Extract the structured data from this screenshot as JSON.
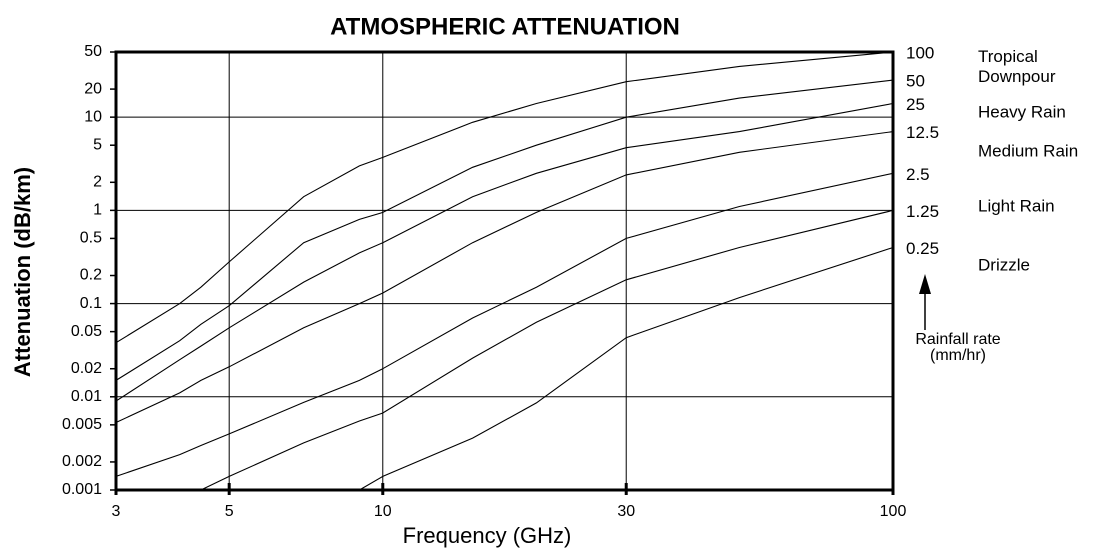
{
  "chart_data": {
    "type": "line",
    "title": "ATMOSPHERIC ATTENUATION",
    "x_label": "Frequency (GHz)",
    "y_label": "Attenuation (dB/km)",
    "log_x": true,
    "log_y": true,
    "xlim": [
      3,
      100
    ],
    "ylim": [
      0.001,
      50
    ],
    "xticks": [
      3,
      5,
      10,
      30,
      100
    ],
    "yticks": [
      0.001,
      0.002,
      0.005,
      0.01,
      0.02,
      0.05,
      0.1,
      0.2,
      0.5,
      1,
      2,
      5,
      10,
      20,
      50
    ],
    "xgrid": [
      5,
      10,
      30
    ],
    "ygrid": [
      0.01,
      0.1,
      1,
      10
    ],
    "x": [
      3,
      4,
      4.4,
      5,
      7,
      9,
      10,
      15,
      20,
      30,
      50,
      100
    ],
    "series": [
      {
        "name": "100",
        "color": "#000000",
        "values": [
          0.038,
          0.1,
          0.15,
          0.28,
          1.4,
          3,
          3.7,
          8.8,
          14,
          24,
          35,
          50
        ]
      },
      {
        "name": "50",
        "color": "#000000",
        "values": [
          0.015,
          0.04,
          0.06,
          0.095,
          0.45,
          0.8,
          0.95,
          2.9,
          5,
          10,
          16,
          25
        ]
      },
      {
        "name": "25",
        "color": "#000000",
        "values": [
          0.009,
          0.025,
          0.035,
          0.055,
          0.17,
          0.35,
          0.45,
          1.4,
          2.5,
          4.7,
          7,
          14
        ]
      },
      {
        "name": "12.5",
        "color": "#000000",
        "values": [
          0.0053,
          0.011,
          0.015,
          0.021,
          0.055,
          0.1,
          0.13,
          0.45,
          0.95,
          2.4,
          4.2,
          7
        ]
      },
      {
        "name": "2.5",
        "color": "#000000",
        "values": [
          0.0014,
          0.0024,
          0.003,
          0.004,
          0.0087,
          0.015,
          0.02,
          0.07,
          0.15,
          0.5,
          1.1,
          2.5
        ]
      },
      {
        "name": "1.25",
        "color": "#000000",
        "values": [
          null,
          null,
          0.001,
          0.0014,
          0.0032,
          0.0055,
          0.0067,
          0.026,
          0.063,
          0.18,
          0.4,
          1
        ]
      },
      {
        "name": "0.25",
        "color": "#000000",
        "values": [
          null,
          null,
          null,
          null,
          null,
          0.001,
          0.0014,
          0.0036,
          0.0086,
          0.043,
          0.116,
          0.4
        ]
      }
    ],
    "rain_categories": [
      "Tropical Downpour",
      "Heavy Rain",
      "Medium Rain",
      "Light Rain",
      "Drizzle"
    ],
    "annotation": [
      "Rainfall rate",
      "(mm/hr)"
    ]
  }
}
